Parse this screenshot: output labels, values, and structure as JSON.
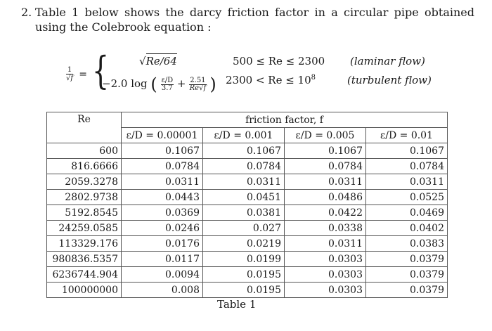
{
  "problem": {
    "number": "2.",
    "text": "Table 1 below shows the darcy friction factor in a circular pipe obtained using the Colebrook equation :"
  },
  "equation": {
    "lhs_numerator": "1",
    "lhs_denominator": "√f",
    "equals": "=",
    "brace": "{",
    "case1_expression": "Re/64",
    "case1_condition": "500 ≤ Re ≤ 2300",
    "case1_label": "(laminar flow)",
    "case2_prefix": "−2.0 log",
    "case2_frac1_num": "ε/D",
    "case2_frac1_den": "3.7",
    "case2_plus": "+",
    "case2_frac2_num": "2.51",
    "case2_frac2_den": "Re√f",
    "case2_condition": "2300 < Re ≤ 10",
    "case2_condition_exp": "8",
    "case2_label": "(turbulent flow)"
  },
  "table": {
    "header_re": "Re",
    "header_group": "friction factor, f",
    "subheaders": [
      "ε/D = 0.00001",
      "ε/D = 0.001",
      "ε/D = 0.005",
      "ε/D = 0.01"
    ],
    "rows": [
      [
        "600",
        "0.1067",
        "0.1067",
        "0.1067",
        "0.1067"
      ],
      [
        "816.6666",
        "0.0784",
        "0.0784",
        "0.0784",
        "0.0784"
      ],
      [
        "2059.3278",
        "0.0311",
        "0.0311",
        "0.0311",
        "0.0311"
      ],
      [
        "2802.9738",
        "0.0443",
        "0.0451",
        "0.0486",
        "0.0525"
      ],
      [
        "5192.8545",
        "0.0369",
        "0.0381",
        "0.0422",
        "0.0469"
      ],
      [
        "24259.0585",
        "0.0246",
        "0.027",
        "0.0338",
        "0.0402"
      ],
      [
        "113329.176",
        "0.0176",
        "0.0219",
        "0.0311",
        "0.0383"
      ],
      [
        "980836.5357",
        "0.0117",
        "0.0199",
        "0.0303",
        "0.0379"
      ],
      [
        "6236744.904",
        "0.0094",
        "0.0195",
        "0.0303",
        "0.0379"
      ],
      [
        "100000000",
        "0.008",
        "0.0195",
        "0.0303",
        "0.0379"
      ]
    ]
  },
  "caption": "Table 1"
}
